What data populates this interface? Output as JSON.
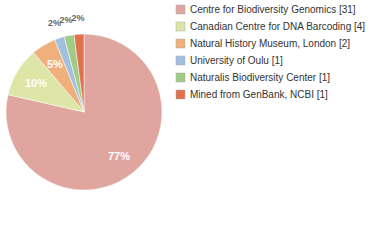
{
  "chart_data": {
    "type": "pie",
    "categories": [
      "Centre for Biodiversity Genomics [31]",
      "Canadian Centre for DNA Barcoding [4]",
      "Natural History Museum, London [2]",
      "University of Oulu [1]",
      "Naturalis Biodiversity Center [1]",
      "Mined from GenBank, NCBI [1]"
    ],
    "values": [
      77,
      10,
      5,
      2,
      2,
      2
    ],
    "value_labels": [
      "77%",
      "10%",
      "5%",
      "2%",
      "2%",
      "2%"
    ],
    "colors": [
      "#e0a59e",
      "#dde6a6",
      "#f0b07c",
      "#a3bfe0",
      "#9fcb84",
      "#e0714f"
    ],
    "data_labels": true,
    "legend": "right"
  }
}
